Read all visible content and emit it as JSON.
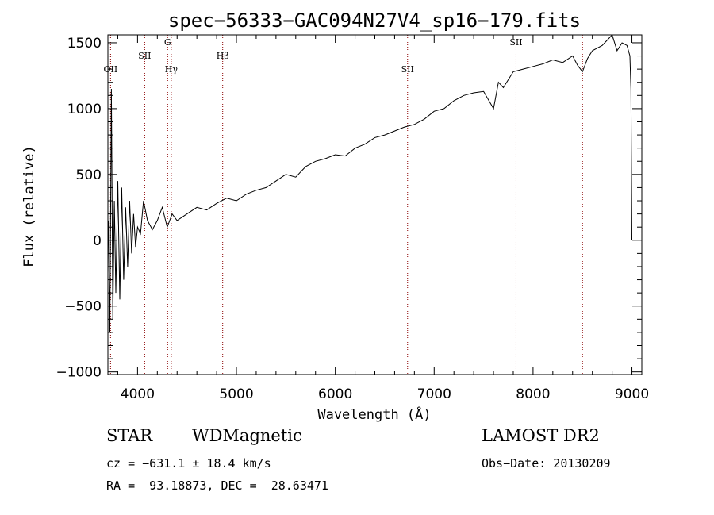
{
  "chart_data": {
    "type": "line",
    "title": "spec−56333−GAC094N27V4_sp16−179.fits",
    "xlabel": "Wavelength (Å)",
    "ylabel": "Flux (relative)",
    "xlim": [
      3700,
      9100
    ],
    "ylim": [
      -1020,
      1560
    ],
    "xticks": [
      4000,
      5000,
      6000,
      7000,
      8000,
      9000
    ],
    "xtick_labels": [
      "4000",
      "5000",
      "6000",
      "7000",
      "8000",
      "9000"
    ],
    "yticks": [
      -1000,
      -500,
      0,
      500,
      1000,
      1500
    ],
    "ytick_labels": [
      "−1000",
      "−500",
      "0",
      "500",
      "1000",
      "1500"
    ],
    "grid": false,
    "series": [
      {
        "color": "#000000",
        "x": [
          3705,
          3720,
          3735,
          3750,
          3765,
          3780,
          3800,
          3820,
          3840,
          3860,
          3880,
          3900,
          3920,
          3940,
          3960,
          3980,
          4000,
          4030,
          4060,
          4100,
          4150,
          4200,
          4250,
          4300,
          4350,
          4400,
          4500,
          4600,
          4700,
          4800,
          4900,
          5000,
          5100,
          5200,
          5300,
          5400,
          5500,
          5600,
          5700,
          5800,
          5900,
          6000,
          6100,
          6200,
          6300,
          6400,
          6500,
          6600,
          6700,
          6800,
          6900,
          7000,
          7100,
          7200,
          7300,
          7400,
          7500,
          7600,
          7650,
          7700,
          7800,
          7900,
          8000,
          8100,
          8200,
          8300,
          8400,
          8450,
          8500,
          8550,
          8600,
          8700,
          8750,
          8800,
          8850,
          8900,
          8950,
          8980,
          8990,
          9000
        ],
        "y": [
          150,
          -700,
          1150,
          -600,
          300,
          -400,
          450,
          -450,
          400,
          -300,
          250,
          -200,
          300,
          -100,
          200,
          -50,
          100,
          50,
          300,
          150,
          80,
          150,
          250,
          100,
          200,
          150,
          200,
          250,
          230,
          280,
          320,
          300,
          350,
          380,
          400,
          450,
          500,
          480,
          560,
          600,
          620,
          650,
          640,
          700,
          730,
          780,
          800,
          830,
          860,
          880,
          920,
          980,
          1000,
          1060,
          1100,
          1120,
          1130,
          1000,
          1200,
          1160,
          1280,
          1300,
          1320,
          1340,
          1370,
          1350,
          1400,
          1330,
          1280,
          1380,
          1440,
          1480,
          1520,
          1560,
          1440,
          1500,
          1480,
          1400,
          1150,
          0
        ]
      }
    ],
    "annotations": [
      {
        "label": "OII",
        "wavelength": 3727
      },
      {
        "label": "SII",
        "wavelength": 4072
      },
      {
        "label": "G",
        "wavelength": 4304
      },
      {
        "label": "Hγ",
        "wavelength": 4341
      },
      {
        "label": "Hβ",
        "wavelength": 4861
      },
      {
        "label": "SII",
        "wavelength": 6731
      },
      {
        "label": "SII",
        "wavelength": 7828
      },
      {
        "label": "",
        "wavelength": 8500
      },
      {
        "label": "",
        "wavelength": 8498
      }
    ],
    "marker_line_color": "#8b0000"
  },
  "info": {
    "class_label": "STAR",
    "subclass_label": "WDMagnetic",
    "survey_label": "LAMOST DR2",
    "redshift_text": "cz = −631.1 ± 18.4 km/s",
    "obs_date_text": "Obs−Date: 20130209",
    "coords_text": "RA =  93.18873, DEC =  28.63471"
  }
}
